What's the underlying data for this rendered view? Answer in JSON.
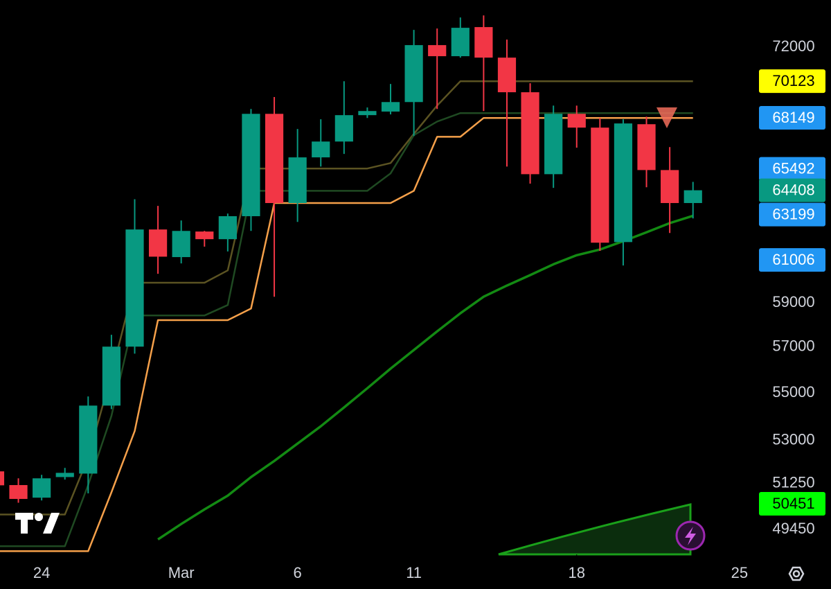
{
  "chart_data": {
    "type": "candlestick",
    "log_scale": true,
    "up_color": "#089981",
    "down_color": "#f23645",
    "x": [
      -2,
      -1,
      0,
      1,
      2,
      3,
      4,
      5,
      6,
      7,
      8,
      9,
      10,
      11,
      12,
      13,
      14,
      15,
      16,
      17,
      18,
      19,
      20,
      21,
      22,
      23,
      24,
      25,
      26,
      27,
      28
    ],
    "open": [
      51740,
      51190,
      50690,
      51510,
      51650,
      54460,
      57020,
      62470,
      61140,
      62370,
      62000,
      63120,
      68360,
      63770,
      66080,
      66900,
      68290,
      68480,
      68990,
      72120,
      71500,
      73140,
      71420,
      69520,
      65220,
      68360,
      67630,
      61860,
      67810,
      65430,
      63770
    ],
    "close": [
      51180,
      50640,
      51460,
      51680,
      54460,
      57020,
      62470,
      61160,
      62400,
      62000,
      63120,
      68360,
      63770,
      66080,
      66900,
      68290,
      68510,
      68990,
      72120,
      71500,
      73100,
      71420,
      69520,
      65220,
      68360,
      67630,
      61830,
      67850,
      65430,
      63770,
      64408
    ],
    "high": [
      51880,
      51460,
      51600,
      51880,
      54850,
      57550,
      63960,
      63630,
      62910,
      62400,
      63250,
      68620,
      69260,
      67560,
      68070,
      70120,
      68700,
      69970,
      72980,
      73060,
      73690,
      73810,
      72430,
      70010,
      68800,
      68800,
      68140,
      68070,
      68210,
      66610,
      64830
    ],
    "low": [
      51040,
      50490,
      50580,
      51410,
      50860,
      54310,
      56710,
      60350,
      60840,
      61640,
      61410,
      62400,
      59280,
      62840,
      65610,
      66260,
      68140,
      68330,
      67190,
      68620,
      71420,
      68510,
      65610,
      64740,
      64530,
      66580,
      61440,
      60740,
      64560,
      62300,
      63010
    ],
    "lines": [
      {
        "color": "#f5a04a",
        "values": [
          48620,
          48620,
          48620,
          48620,
          48620,
          50900,
          53390,
          58210,
          58210,
          58210,
          58210,
          58740,
          63770,
          63770,
          63770,
          63770,
          63770,
          63770,
          64380,
          67150,
          67150,
          68140,
          68140,
          68140,
          68140,
          68140,
          68140,
          68140,
          68140,
          68140,
          68140
        ]
      },
      {
        "color": "#5b5322",
        "values": [
          50030,
          50030,
          50030,
          50030,
          52300,
          55800,
          59930,
          59930,
          59930,
          59930,
          60510,
          65510,
          65510,
          65510,
          65510,
          65510,
          65510,
          65790,
          67300,
          68800,
          70120,
          70120,
          70120,
          70120,
          70120,
          70120,
          70120,
          70120,
          70120,
          70120,
          70120
        ]
      },
      {
        "color": "#1f4a22",
        "values": [
          48810,
          48810,
          48810,
          48810,
          51190,
          54020,
          58420,
          58420,
          58420,
          58420,
          58900,
          64380,
          64380,
          64380,
          64380,
          64380,
          64380,
          65260,
          67230,
          67950,
          68400,
          68400,
          68400,
          68400,
          68400,
          68400,
          68400,
          68400,
          68400,
          68400,
          68400
        ]
      },
      {
        "color": "#138a13",
        "values": [
          null,
          null,
          null,
          null,
          null,
          null,
          null,
          49070,
          49660,
          50230,
          50770,
          51510,
          52160,
          52870,
          53590,
          54380,
          55200,
          56050,
          56870,
          57700,
          58520,
          59280,
          59800,
          60290,
          60800,
          61230,
          61500,
          61900,
          62330,
          62780,
          63140
        ]
      }
    ],
    "xlim": [
      -1.79,
      30.36
    ],
    "xticks": [
      {
        "value": 0,
        "label": "24"
      },
      {
        "value": 6,
        "label": "Mar"
      },
      {
        "value": 11,
        "label": "6"
      },
      {
        "value": 16,
        "label": "11"
      },
      {
        "value": 23,
        "label": "18"
      },
      {
        "value": 30,
        "label": "25"
      }
    ],
    "ylim": [
      48500,
      74700
    ],
    "yticks": [
      72000,
      59000,
      57000,
      55000,
      53000,
      51250,
      49450
    ],
    "price_labels": [
      {
        "value": 70123,
        "color": "#ffff00",
        "text_color": "#000000"
      },
      {
        "value": 68149,
        "color": "#2196f3",
        "text_color": "#ffffff"
      },
      {
        "value": 65492,
        "color": "#2196f3",
        "text_color": "#ffffff"
      },
      {
        "value": 64408,
        "color": "#089981",
        "text_color": "#ffffff"
      },
      {
        "value": 63199,
        "color": "#2196f3",
        "text_color": "#ffffff"
      },
      {
        "value": 61006,
        "color": "#2196f3",
        "text_color": "#ffffff"
      },
      {
        "value": 50451,
        "color": "#00ff00",
        "text_color": "#000000"
      }
    ]
  }
}
